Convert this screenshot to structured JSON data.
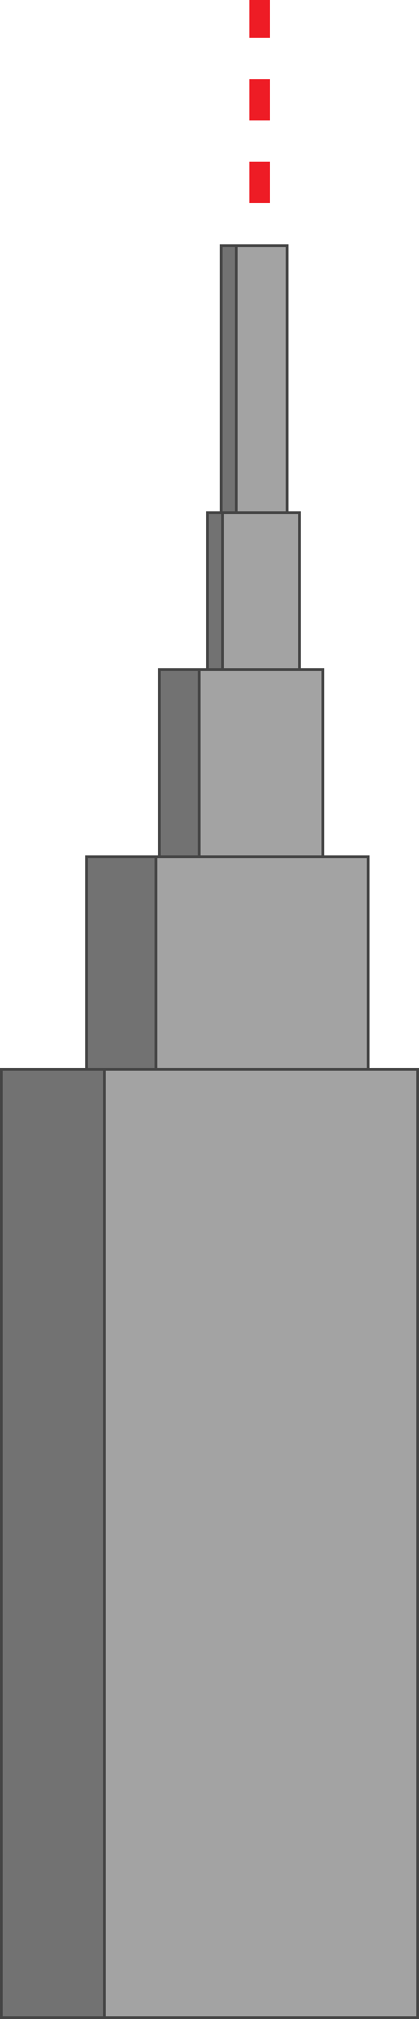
{
  "colors": {
    "background": "#ffffff",
    "block_light": "#a3a3a3",
    "block_dark": "#727272",
    "outline": "#454545",
    "dash": "#ee1c25"
  },
  "illustration": {
    "subject": "stepped-tower",
    "tier_count": 5,
    "dash_count": 3
  }
}
